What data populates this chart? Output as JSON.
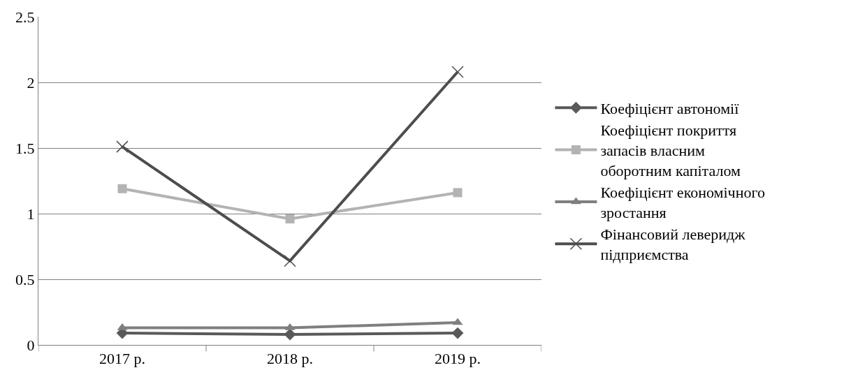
{
  "chart_data": {
    "type": "line",
    "categories": [
      "2017 р.",
      "2018 р.",
      "2019 р."
    ],
    "series": [
      {
        "name": "Коефіцієнт автономії",
        "color": "#595959",
        "marker": "diamond",
        "values": [
          0.09,
          0.08,
          0.09
        ]
      },
      {
        "name": "Коефіцієнт покриття запасів власним оборотним капіталом",
        "color": "#b3b3b3",
        "marker": "square",
        "values": [
          1.19,
          0.96,
          1.16
        ]
      },
      {
        "name": "Коефіцієнт економічного зростання",
        "color": "#7f7f7f",
        "marker": "triangle",
        "values": [
          0.13,
          0.13,
          0.17
        ]
      },
      {
        "name": "Фінансовий леверидж підприємства",
        "color": "#4d4d4d",
        "marker": "cross",
        "values": [
          1.51,
          0.64,
          2.08
        ]
      }
    ],
    "ylim": [
      0,
      2.5
    ],
    "yticks": [
      0,
      0.5,
      1,
      1.5,
      2,
      2.5
    ],
    "grid": "y",
    "legend": "right",
    "line_style": "solid"
  }
}
